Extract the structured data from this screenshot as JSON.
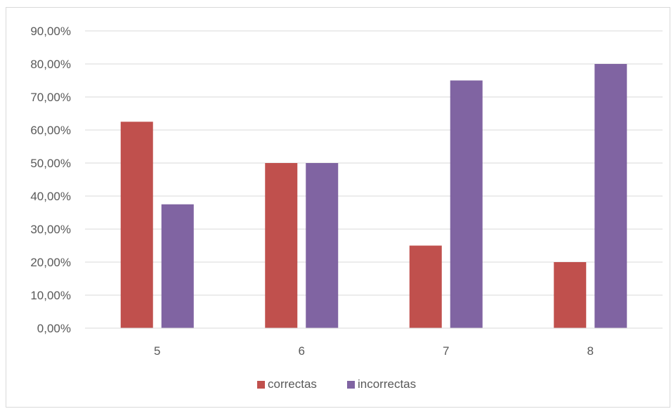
{
  "chart_data": {
    "type": "bar",
    "title": "",
    "xlabel": "",
    "ylabel": "",
    "categories": [
      "5",
      "6",
      "7",
      "8"
    ],
    "series": [
      {
        "name": "correctas",
        "color": "#c0504d",
        "values": [
          62.5,
          50,
          25,
          20
        ]
      },
      {
        "name": "incorrectas",
        "color": "#8064a2",
        "values": [
          37.5,
          50,
          75,
          80
        ]
      }
    ],
    "ylim": [
      0,
      90
    ],
    "yticks": [
      0,
      10,
      20,
      30,
      40,
      50,
      60,
      70,
      80,
      90
    ],
    "ytick_labels": [
      "0,00%",
      "10,00%",
      "20,00%",
      "30,00%",
      "40,00%",
      "50,00%",
      "60,00%",
      "70,00%",
      "80,00%",
      "90,00%"
    ],
    "grid": true,
    "legend_position": "bottom",
    "gridline_color": "#d9d9d9"
  }
}
